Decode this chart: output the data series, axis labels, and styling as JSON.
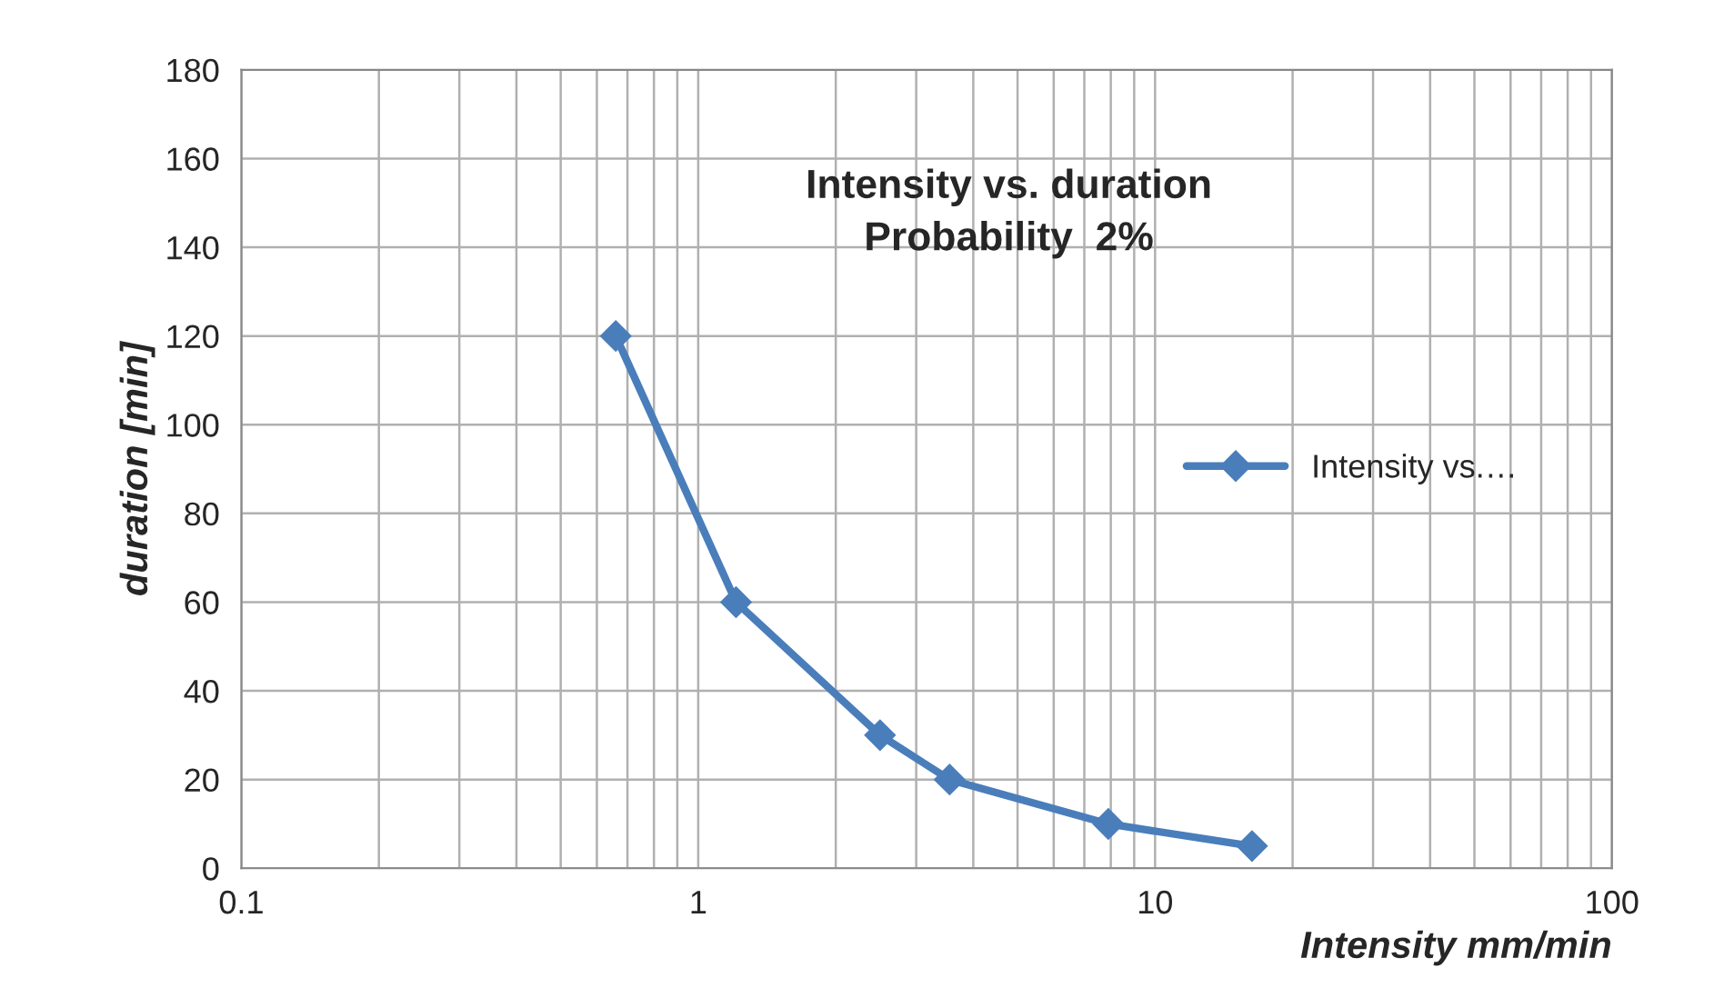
{
  "chart_data": {
    "type": "line",
    "title": "Intensity vs. duration\nProbability  2%",
    "xlabel": "Intensity mm/min",
    "ylabel": "duration [min]",
    "x": [
      0.66,
      1.21,
      2.5,
      3.55,
      7.9,
      16.3
    ],
    "series": [
      {
        "name": "Intensity vs.…",
        "color": "#4a7ebb",
        "values": [
          120,
          60,
          30,
          20,
          10,
          5
        ]
      }
    ],
    "log": "x",
    "xlim": [
      0.1,
      100
    ],
    "xticks": [
      0.1,
      1,
      10,
      100
    ],
    "ylim": [
      0,
      180
    ],
    "yticks": [
      0,
      20,
      40,
      60,
      80,
      100,
      120,
      140,
      160,
      180
    ],
    "grid": true,
    "legend": "right",
    "marker": "diamond",
    "line_style": "solid"
  }
}
